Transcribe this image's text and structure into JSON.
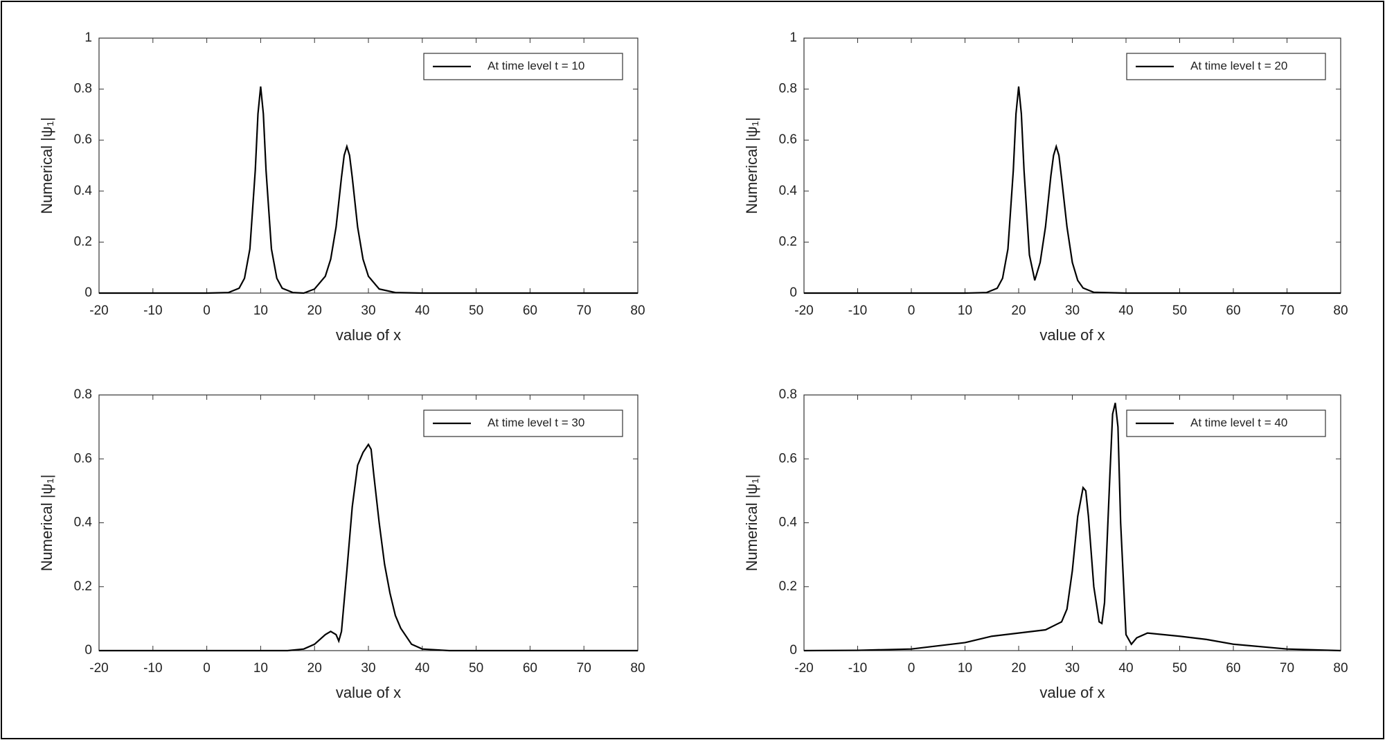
{
  "chart_data": [
    {
      "type": "line",
      "xlabel": "value of x",
      "ylabel": "Numerical |ψ₁|",
      "legend": "upper right",
      "x": [
        -20,
        -10,
        0,
        4,
        6,
        7,
        8,
        9,
        9.5,
        10,
        10.5,
        11,
        12,
        13,
        14,
        16,
        18,
        20,
        22,
        23,
        24,
        25,
        25.5,
        26,
        26.5,
        27,
        28,
        29,
        30,
        32,
        35,
        40,
        50,
        60,
        70,
        80
      ],
      "series": [
        {
          "name": "At time level t = 10",
          "color": "#000000",
          "values": [
            0,
            0,
            0,
            0.002,
            0.019,
            0.058,
            0.173,
            0.481,
            0.703,
            0.81,
            0.703,
            0.481,
            0.173,
            0.058,
            0.019,
            0.002,
            0,
            0.016,
            0.066,
            0.133,
            0.259,
            0.454,
            0.54,
            0.575,
            0.54,
            0.454,
            0.259,
            0.133,
            0.066,
            0.016,
            0.002,
            0,
            0,
            0,
            0,
            0
          ]
        }
      ],
      "xlim": [
        -20,
        80
      ],
      "ylim": [
        0,
        1
      ],
      "xticks": [
        -20,
        -10,
        0,
        10,
        20,
        30,
        40,
        50,
        60,
        70,
        80
      ],
      "yticks": [
        0,
        0.2,
        0.4,
        0.6,
        0.8,
        1
      ]
    },
    {
      "type": "line",
      "xlabel": "value of x",
      "ylabel": "Numerical |ψ₁|",
      "legend": "upper right",
      "x": [
        -20,
        -10,
        0,
        10,
        14,
        16,
        17,
        18,
        19,
        19.5,
        20,
        20.5,
        21,
        22,
        23,
        24,
        25,
        26,
        26.5,
        27,
        27.5,
        28,
        29,
        30,
        31,
        32,
        34,
        40,
        50,
        60,
        70,
        80
      ],
      "series": [
        {
          "name": "At time level t = 20",
          "color": "#000000",
          "values": [
            0,
            0,
            0,
            0,
            0.002,
            0.019,
            0.058,
            0.173,
            0.481,
            0.703,
            0.81,
            0.703,
            0.481,
            0.15,
            0.05,
            0.12,
            0.26,
            0.46,
            0.54,
            0.575,
            0.54,
            0.45,
            0.26,
            0.12,
            0.05,
            0.02,
            0.003,
            0,
            0,
            0,
            0,
            0
          ]
        }
      ],
      "xlim": [
        -20,
        80
      ],
      "ylim": [
        0,
        1
      ],
      "xticks": [
        -20,
        -10,
        0,
        10,
        20,
        30,
        40,
        50,
        60,
        70,
        80
      ],
      "yticks": [
        0,
        0.2,
        0.4,
        0.6,
        0.8,
        1
      ]
    },
    {
      "type": "line",
      "xlabel": "value of x",
      "ylabel": "Numerical |ψ₁|",
      "legend": "upper right",
      "x": [
        -20,
        -10,
        0,
        10,
        15,
        18,
        20,
        22,
        23,
        24,
        24.5,
        25,
        26,
        27,
        28,
        29,
        30,
        30.5,
        31,
        32,
        33,
        34,
        35,
        36,
        38,
        40,
        45,
        50,
        60,
        70,
        80
      ],
      "series": [
        {
          "name": "At time level t = 30",
          "color": "#000000",
          "values": [
            0,
            0,
            0,
            0,
            0,
            0.005,
            0.02,
            0.05,
            0.06,
            0.05,
            0.03,
            0.06,
            0.25,
            0.45,
            0.58,
            0.62,
            0.645,
            0.63,
            0.55,
            0.4,
            0.27,
            0.18,
            0.11,
            0.07,
            0.02,
            0.005,
            0,
            0,
            0,
            0,
            0
          ]
        }
      ],
      "xlim": [
        -20,
        80
      ],
      "ylim": [
        0,
        0.8
      ],
      "xticks": [
        -20,
        -10,
        0,
        10,
        20,
        30,
        40,
        50,
        60,
        70,
        80
      ],
      "yticks": [
        0,
        0.2,
        0.4,
        0.6,
        0.8
      ]
    },
    {
      "type": "line",
      "xlabel": "value of x",
      "ylabel": "Numerical |ψ₁|",
      "legend": "upper right",
      "x": [
        -20,
        -10,
        0,
        10,
        15,
        20,
        25,
        28,
        29,
        30,
        31,
        32,
        32.5,
        33,
        34,
        35,
        35.5,
        36,
        37,
        37.5,
        38,
        38.5,
        39,
        40,
        41,
        42,
        44,
        50,
        55,
        60,
        70,
        80
      ],
      "series": [
        {
          "name": "At time level t = 40",
          "color": "#000000",
          "values": [
            0,
            0.001,
            0.005,
            0.025,
            0.045,
            0.055,
            0.065,
            0.09,
            0.13,
            0.25,
            0.42,
            0.51,
            0.5,
            0.42,
            0.2,
            0.09,
            0.085,
            0.15,
            0.55,
            0.74,
            0.775,
            0.7,
            0.4,
            0.05,
            0.02,
            0.04,
            0.055,
            0.045,
            0.035,
            0.02,
            0.005,
            0
          ]
        }
      ],
      "xlim": [
        -20,
        80
      ],
      "ylim": [
        0,
        0.8
      ],
      "xticks": [
        -20,
        -10,
        0,
        10,
        20,
        30,
        40,
        50,
        60,
        70,
        80
      ],
      "yticks": [
        0,
        0.2,
        0.4,
        0.6,
        0.8
      ]
    }
  ]
}
